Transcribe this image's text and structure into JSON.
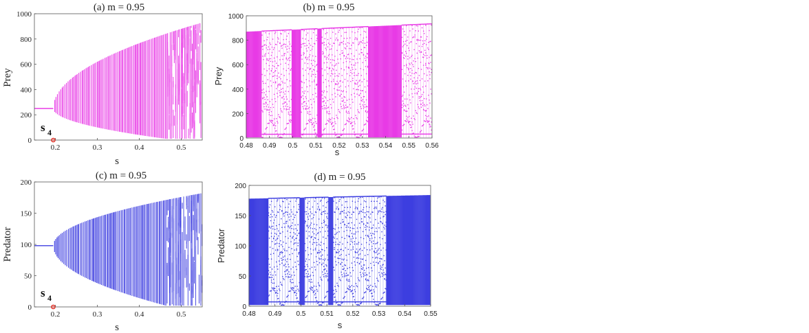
{
  "chart_data": [
    {
      "panel": "a",
      "type": "scatter",
      "title": "(a) m = 0.95",
      "xlabel": "s",
      "ylabel": "Prey",
      "xlim": [
        0.15,
        0.55
      ],
      "ylim": [
        0,
        1000
      ],
      "xticks": [
        "0.2",
        "0.3",
        "0.4",
        "0.5"
      ],
      "yticks": [
        "0",
        "200",
        "400",
        "600",
        "800",
        "1000"
      ],
      "color": "#e83be6",
      "fixed_point_level": 250,
      "bifurcation_point": {
        "label": "s",
        "subscript": "4",
        "x": 0.195,
        "y": 0,
        "color": "#e0281e"
      },
      "envelope": {
        "min_at_end": 10,
        "max_at_end": 930
      },
      "chaotic_onset": 0.465
    },
    {
      "panel": "b",
      "type": "scatter",
      "title": "(b) m = 0.95",
      "xlabel": "s",
      "ylabel": "Prey",
      "xlim": [
        0.48,
        0.56
      ],
      "ylim": [
        0,
        1000
      ],
      "xticks": [
        "0.48",
        "0.49",
        "0.5",
        "0.51",
        "0.52",
        "0.53",
        "0.54",
        "0.55",
        "0.56"
      ],
      "yticks": [
        "0",
        "200",
        "400",
        "600",
        "800",
        "1000"
      ],
      "color": "#e83be6",
      "envelope": {
        "min": 5,
        "max_start": 870,
        "max_end": 935
      },
      "dense_bands": [
        [
          0.48,
          0.4865
        ],
        [
          0.4995,
          0.5035
        ],
        [
          0.5105,
          0.5125
        ],
        [
          0.5325,
          0.547
        ]
      ]
    },
    {
      "panel": "c",
      "type": "scatter",
      "title": "(c) m = 0.95",
      "xlabel": "s",
      "ylabel": "Predator",
      "xlim": [
        0.15,
        0.55
      ],
      "ylim": [
        0,
        200
      ],
      "xticks": [
        "0.2",
        "0.3",
        "0.4",
        "0.5"
      ],
      "yticks": [
        "0",
        "50",
        "100",
        "150",
        "200"
      ],
      "color": "#3d3ee0",
      "fixed_point_level": 98,
      "bifurcation_point": {
        "label": "s",
        "subscript": "4",
        "x": 0.195,
        "y": 0,
        "color": "#e0281e"
      },
      "envelope": {
        "min_at_end": 2,
        "max_at_end": 182
      },
      "chaotic_onset": 0.465
    },
    {
      "panel": "d",
      "type": "scatter",
      "title": "(d) m = 0.95",
      "xlabel": "s",
      "ylabel": "Predator",
      "xlim": [
        0.48,
        0.55
      ],
      "ylim": [
        0,
        200
      ],
      "xticks": [
        "0.48",
        "0.49",
        "0.5",
        "0.51",
        "0.52",
        "0.53",
        "0.54",
        "0.55"
      ],
      "yticks": [
        "0",
        "50",
        "100",
        "150",
        "200"
      ],
      "color": "#3d3ee0",
      "envelope": {
        "min": 2,
        "max_start": 178,
        "max_end": 184
      },
      "dense_bands": [
        [
          0.48,
          0.4875
        ],
        [
          0.4995,
          0.5015
        ],
        [
          0.5105,
          0.5125
        ],
        [
          0.533,
          0.55
        ]
      ]
    }
  ]
}
